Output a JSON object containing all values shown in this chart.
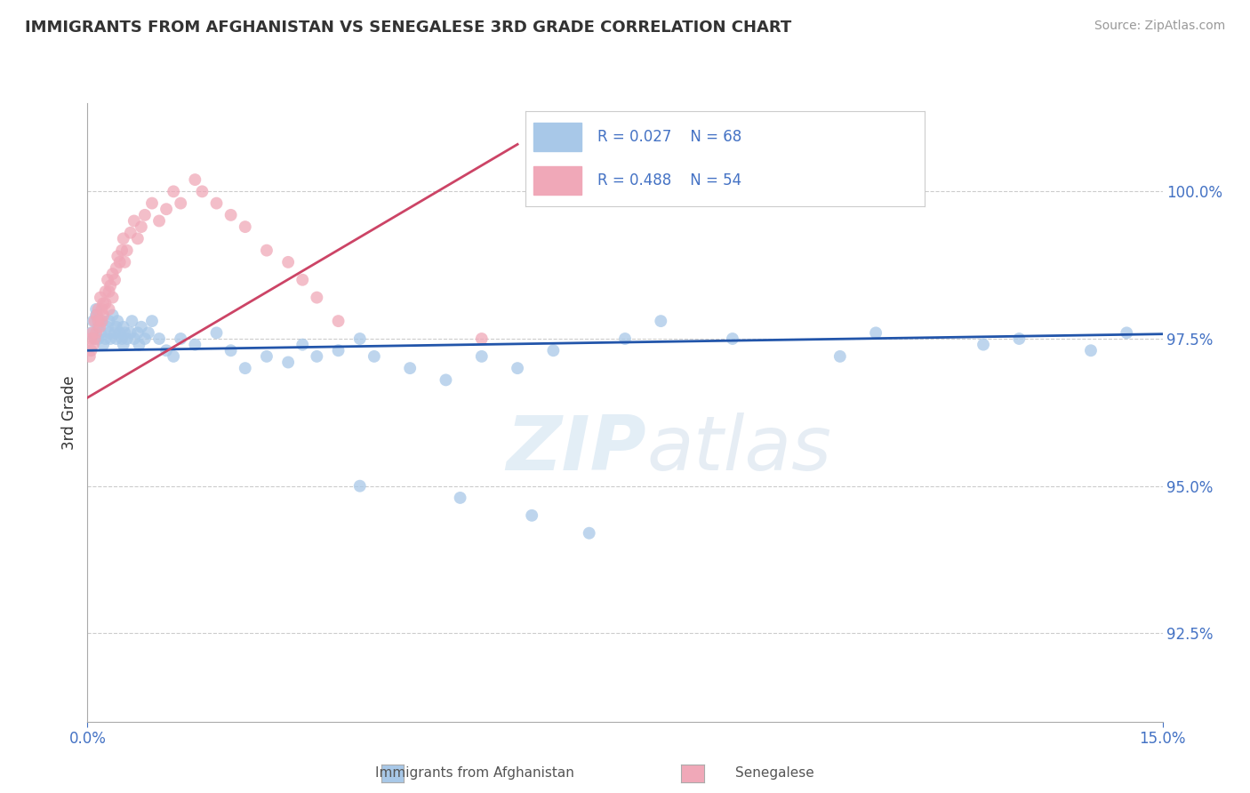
{
  "title": "IMMIGRANTS FROM AFGHANISTAN VS SENEGALESE 3RD GRADE CORRELATION CHART",
  "source": "Source: ZipAtlas.com",
  "ylabel": "3rd Grade",
  "legend_labels": [
    "Immigrants from Afghanistan",
    "Senegalese"
  ],
  "legend_r": [
    "R = 0.027",
    "R = 0.488"
  ],
  "legend_n": [
    "N = 68",
    "N = 54"
  ],
  "xlim": [
    0.0,
    15.0
  ],
  "ylim": [
    91.0,
    101.5
  ],
  "yticks": [
    92.5,
    95.0,
    97.5,
    100.0
  ],
  "ytick_labels": [
    "92.5%",
    "95.0%",
    "97.5%",
    "100.0%"
  ],
  "xtick_labels": [
    "0.0%",
    "15.0%"
  ],
  "blue_color": "#a8c8e8",
  "pink_color": "#f0a8b8",
  "blue_line_color": "#2255aa",
  "pink_line_color": "#cc4466",
  "axis_color": "#4472c4",
  "grid_color": "#cccccc",
  "watermark_zip": "ZIP",
  "watermark_atlas": "atlas",
  "blue_x": [
    0.05,
    0.08,
    0.1,
    0.12,
    0.12,
    0.15,
    0.15,
    0.18,
    0.2,
    0.22,
    0.25,
    0.28,
    0.3,
    0.3,
    0.32,
    0.35,
    0.38,
    0.4,
    0.4,
    0.42,
    0.45,
    0.48,
    0.5,
    0.5,
    0.52,
    0.55,
    0.6,
    0.62,
    0.65,
    0.7,
    0.72,
    0.75,
    0.8,
    0.85,
    0.9,
    1.0,
    1.1,
    1.2,
    1.3,
    1.5,
    1.8,
    2.0,
    2.2,
    2.5,
    2.8,
    3.0,
    3.2,
    3.5,
    3.8,
    4.0,
    4.5,
    5.0,
    5.5,
    6.0,
    6.5,
    7.5,
    8.0,
    9.0,
    10.5,
    11.0,
    12.5,
    13.0,
    14.0,
    14.5,
    3.8,
    5.2,
    6.2,
    7.0
  ],
  "blue_y": [
    97.6,
    97.8,
    97.5,
    97.9,
    98.0,
    97.7,
    97.5,
    97.6,
    97.8,
    97.4,
    97.5,
    97.7,
    97.6,
    97.8,
    97.5,
    97.9,
    97.6,
    97.5,
    97.7,
    97.8,
    97.6,
    97.5,
    97.4,
    97.7,
    97.6,
    97.5,
    97.6,
    97.8,
    97.5,
    97.6,
    97.4,
    97.7,
    97.5,
    97.6,
    97.8,
    97.5,
    97.3,
    97.2,
    97.5,
    97.4,
    97.6,
    97.3,
    97.0,
    97.2,
    97.1,
    97.4,
    97.2,
    97.3,
    97.5,
    97.2,
    97.0,
    96.8,
    97.2,
    97.0,
    97.3,
    97.5,
    97.8,
    97.5,
    97.2,
    97.6,
    97.4,
    97.5,
    97.3,
    97.6,
    95.0,
    94.8,
    94.5,
    94.2
  ],
  "pink_x": [
    0.03,
    0.05,
    0.05,
    0.07,
    0.08,
    0.1,
    0.1,
    0.12,
    0.13,
    0.15,
    0.15,
    0.17,
    0.18,
    0.2,
    0.2,
    0.22,
    0.22,
    0.25,
    0.25,
    0.28,
    0.3,
    0.3,
    0.32,
    0.35,
    0.35,
    0.38,
    0.4,
    0.42,
    0.45,
    0.48,
    0.5,
    0.52,
    0.55,
    0.6,
    0.65,
    0.7,
    0.75,
    0.8,
    0.9,
    1.0,
    1.1,
    1.2,
    1.3,
    1.5,
    1.6,
    1.8,
    2.0,
    2.2,
    2.5,
    2.8,
    3.0,
    3.2,
    3.5,
    5.5
  ],
  "pink_y": [
    97.2,
    97.5,
    97.3,
    97.6,
    97.4,
    97.8,
    97.5,
    97.6,
    97.9,
    97.8,
    98.0,
    97.7,
    98.2,
    98.0,
    97.8,
    98.1,
    97.9,
    98.3,
    98.1,
    98.5,
    98.3,
    98.0,
    98.4,
    98.6,
    98.2,
    98.5,
    98.7,
    98.9,
    98.8,
    99.0,
    99.2,
    98.8,
    99.0,
    99.3,
    99.5,
    99.2,
    99.4,
    99.6,
    99.8,
    99.5,
    99.7,
    100.0,
    99.8,
    100.2,
    100.0,
    99.8,
    99.6,
    99.4,
    99.0,
    98.8,
    98.5,
    98.2,
    97.8,
    97.5
  ]
}
